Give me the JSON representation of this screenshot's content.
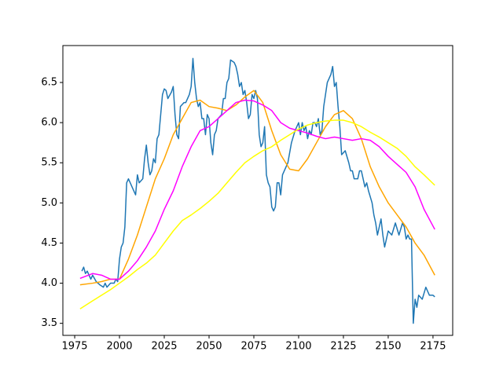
{
  "chart_data": {
    "type": "line",
    "xlim": [
      1968.4,
      2186
    ],
    "ylim": [
      3.35,
      6.96
    ],
    "xticks": [
      1975,
      2000,
      2025,
      2050,
      2075,
      2100,
      2125,
      2150,
      2175
    ],
    "yticks": [
      3.5,
      {
        "value": 4,
        "label": "4.0"
      },
      4.5,
      {
        "value": 5,
        "label": "5.0"
      },
      5.5,
      {
        "value": 6,
        "label": "6.0"
      },
      6.5
    ],
    "grid": false,
    "series": [
      {
        "color": "#1f77b4",
        "x": [
          1979,
          1980,
          1981,
          1982,
          1984,
          1985,
          1987,
          1989,
          1991,
          1992,
          1993,
          1995,
          1997,
          1998,
          1999,
          2000,
          2001,
          2002,
          2003,
          2004,
          2005,
          2006,
          2007,
          2008,
          2009,
          2010,
          2011,
          2013,
          2014,
          2015,
          2016,
          2017,
          2018,
          2019,
          2020,
          2021,
          2022,
          2023,
          2024,
          2025,
          2026,
          2027,
          2029,
          2030,
          2031,
          2032,
          2033,
          2034,
          2036,
          2037,
          2038,
          2039,
          2040,
          2041,
          2042,
          2043,
          2044,
          2045,
          2046,
          2047,
          2048,
          2049,
          2050,
          2051,
          2052,
          2053,
          2054,
          2055,
          2057,
          2058,
          2059,
          2060,
          2061,
          2062,
          2064,
          2065,
          2066,
          2067,
          2068,
          2069,
          2070,
          2071,
          2072,
          2073,
          2074,
          2075,
          2076,
          2077,
          2078,
          2079,
          2080,
          2081,
          2082,
          2083,
          2084,
          2085,
          2086,
          2087,
          2088,
          2089,
          2090,
          2091,
          2092,
          2094,
          2096,
          2098,
          2100,
          2101,
          2102,
          2103,
          2104,
          2105,
          2106,
          2107,
          2108,
          2109,
          2110,
          2111,
          2112,
          2113,
          2114,
          2115,
          2116,
          2117,
          2118,
          2119,
          2120,
          2121,
          2122,
          2123,
          2124,
          2126,
          2128,
          2129,
          2130,
          2131,
          2133,
          2134,
          2135,
          2136,
          2137,
          2138,
          2139,
          2141,
          2142,
          2143,
          2144,
          2145,
          2146,
          2147,
          2148,
          2149,
          2150,
          2152,
          2154,
          2156,
          2158,
          2159,
          2160,
          2161,
          2162,
          2163,
          2164,
          2165,
          2166,
          2167,
          2169,
          2171,
          2172,
          2173,
          2175,
          2176
        ],
        "values": [
          4.15,
          4.2,
          4.12,
          4.15,
          4.05,
          4.1,
          4.02,
          3.98,
          3.95,
          4.0,
          3.95,
          4.0,
          4.0,
          4.05,
          4.02,
          4.3,
          4.45,
          4.5,
          4.7,
          5.25,
          5.3,
          5.25,
          5.2,
          5.15,
          5.1,
          5.35,
          5.25,
          5.3,
          5.55,
          5.72,
          5.5,
          5.35,
          5.4,
          5.55,
          5.5,
          5.8,
          5.85,
          6.1,
          6.35,
          6.42,
          6.4,
          6.3,
          6.38,
          6.45,
          6.1,
          5.85,
          5.8,
          6.2,
          6.25,
          6.25,
          6.3,
          6.35,
          6.45,
          6.8,
          6.5,
          6.3,
          6.2,
          6.25,
          6.05,
          6.05,
          5.85,
          6.1,
          6.05,
          5.75,
          5.6,
          5.85,
          5.9,
          6.05,
          6.1,
          6.3,
          6.3,
          6.5,
          6.55,
          6.78,
          6.75,
          6.7,
          6.6,
          6.45,
          6.5,
          6.35,
          6.4,
          6.25,
          6.05,
          6.1,
          6.35,
          6.3,
          6.4,
          6.3,
          5.85,
          5.7,
          5.75,
          5.95,
          5.35,
          5.25,
          5.2,
          4.95,
          4.9,
          4.95,
          5.25,
          5.25,
          5.1,
          5.35,
          5.4,
          5.5,
          5.75,
          5.9,
          6.0,
          5.85,
          6.0,
          5.9,
          5.95,
          5.8,
          5.9,
          5.85,
          6.0,
          6.0,
          5.95,
          6.05,
          5.85,
          5.9,
          6.2,
          6.35,
          6.5,
          6.55,
          6.6,
          6.7,
          6.45,
          6.5,
          6.2,
          5.95,
          5.6,
          5.65,
          5.5,
          5.4,
          5.4,
          5.3,
          5.3,
          5.4,
          5.4,
          5.3,
          5.2,
          5.25,
          5.15,
          5.0,
          4.85,
          4.75,
          4.6,
          4.7,
          4.8,
          4.6,
          4.45,
          4.55,
          4.65,
          4.6,
          4.75,
          4.6,
          4.75,
          4.7,
          4.55,
          4.6,
          4.55,
          4.55,
          3.5,
          3.8,
          3.7,
          3.85,
          3.8,
          3.95,
          3.9,
          3.85,
          3.85,
          3.83
        ]
      },
      {
        "color": "#ffa500",
        "x": [
          1978,
          1985,
          1990,
          1995,
          2000,
          2005,
          2010,
          2015,
          2020,
          2025,
          2030,
          2035,
          2040,
          2045,
          2050,
          2055,
          2060,
          2065,
          2070,
          2075,
          2080,
          2085,
          2090,
          2095,
          2100,
          2105,
          2110,
          2115,
          2120,
          2125,
          2130,
          2135,
          2140,
          2145,
          2150,
          2155,
          2160,
          2165,
          2170,
          2176
        ],
        "values": [
          3.98,
          4.0,
          4.02,
          4.05,
          4.05,
          4.3,
          4.6,
          4.95,
          5.3,
          5.55,
          5.85,
          6.05,
          6.25,
          6.28,
          6.2,
          6.18,
          6.15,
          6.22,
          6.32,
          6.4,
          6.25,
          5.9,
          5.6,
          5.42,
          5.4,
          5.55,
          5.75,
          5.95,
          6.1,
          6.15,
          6.05,
          5.8,
          5.45,
          5.2,
          5.0,
          4.85,
          4.7,
          4.5,
          4.35,
          4.1
        ]
      },
      {
        "color": "#ff00ff",
        "x": [
          1978,
          1985,
          1990,
          1995,
          2000,
          2005,
          2010,
          2015,
          2020,
          2025,
          2030,
          2035,
          2040,
          2045,
          2050,
          2055,
          2060,
          2065,
          2070,
          2075,
          2080,
          2085,
          2090,
          2095,
          2100,
          2105,
          2110,
          2115,
          2120,
          2125,
          2130,
          2135,
          2140,
          2145,
          2150,
          2155,
          2160,
          2165,
          2170,
          2176
        ],
        "values": [
          4.06,
          4.12,
          4.1,
          4.05,
          4.05,
          4.15,
          4.28,
          4.45,
          4.65,
          4.92,
          5.15,
          5.45,
          5.7,
          5.9,
          5.95,
          6.05,
          6.15,
          6.25,
          6.28,
          6.27,
          6.22,
          6.15,
          6.0,
          5.93,
          5.9,
          5.87,
          5.83,
          5.8,
          5.82,
          5.8,
          5.78,
          5.8,
          5.78,
          5.7,
          5.58,
          5.48,
          5.38,
          5.2,
          4.92,
          4.67
        ]
      },
      {
        "color": "#ffff00",
        "x": [
          1978,
          1985,
          1990,
          1995,
          2000,
          2005,
          2010,
          2015,
          2020,
          2025,
          2030,
          2035,
          2040,
          2045,
          2050,
          2055,
          2060,
          2065,
          2070,
          2075,
          2080,
          2085,
          2090,
          2095,
          2100,
          2105,
          2110,
          2115,
          2120,
          2125,
          2130,
          2135,
          2140,
          2145,
          2150,
          2155,
          2160,
          2165,
          2170,
          2176
        ],
        "values": [
          3.68,
          3.78,
          3.85,
          3.92,
          4.0,
          4.08,
          4.17,
          4.25,
          4.35,
          4.5,
          4.65,
          4.78,
          4.85,
          4.93,
          5.02,
          5.12,
          5.25,
          5.38,
          5.5,
          5.58,
          5.65,
          5.7,
          5.78,
          5.85,
          5.92,
          5.97,
          6.0,
          6.02,
          6.03,
          6.03,
          6.0,
          5.95,
          5.88,
          5.82,
          5.75,
          5.68,
          5.58,
          5.45,
          5.35,
          5.22
        ]
      }
    ]
  }
}
